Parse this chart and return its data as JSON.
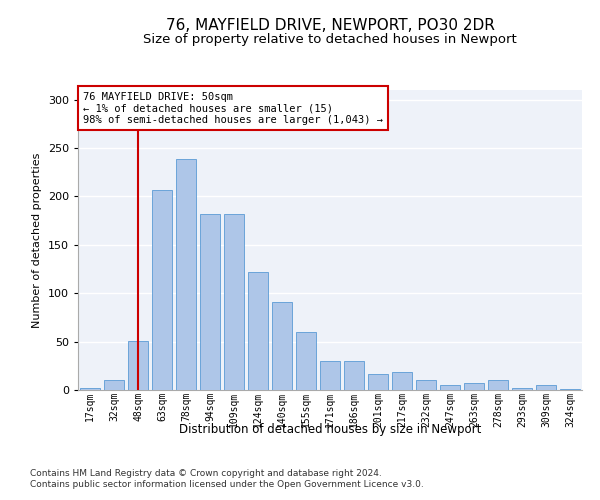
{
  "title1": "76, MAYFIELD DRIVE, NEWPORT, PO30 2DR",
  "title2": "Size of property relative to detached houses in Newport",
  "xlabel": "Distribution of detached houses by size in Newport",
  "ylabel": "Number of detached properties",
  "footnote1": "Contains HM Land Registry data © Crown copyright and database right 2024.",
  "footnote2": "Contains public sector information licensed under the Open Government Licence v3.0.",
  "annotation_line1": "76 MAYFIELD DRIVE: 50sqm",
  "annotation_line2": "← 1% of detached houses are smaller (15)",
  "annotation_line3": "98% of semi-detached houses are larger (1,043) →",
  "bar_labels": [
    "17sqm",
    "32sqm",
    "48sqm",
    "63sqm",
    "78sqm",
    "94sqm",
    "109sqm",
    "124sqm",
    "140sqm",
    "155sqm",
    "171sqm",
    "186sqm",
    "201sqm",
    "217sqm",
    "232sqm",
    "247sqm",
    "263sqm",
    "278sqm",
    "293sqm",
    "309sqm",
    "324sqm"
  ],
  "bar_values": [
    2,
    10,
    51,
    207,
    239,
    182,
    182,
    122,
    91,
    60,
    30,
    30,
    17,
    19,
    10,
    5,
    7,
    10,
    2,
    5,
    1
  ],
  "bar_color": "#aec6e8",
  "bar_edge_color": "#5b9bd5",
  "vline_color": "#cc0000",
  "ylim": [
    0,
    310
  ],
  "yticks": [
    0,
    50,
    100,
    150,
    200,
    250,
    300
  ],
  "bg_color": "#eef2f9",
  "grid_color": "#ffffff",
  "title1_fontsize": 11,
  "title2_fontsize": 9.5,
  "footnote_fontsize": 6.5
}
